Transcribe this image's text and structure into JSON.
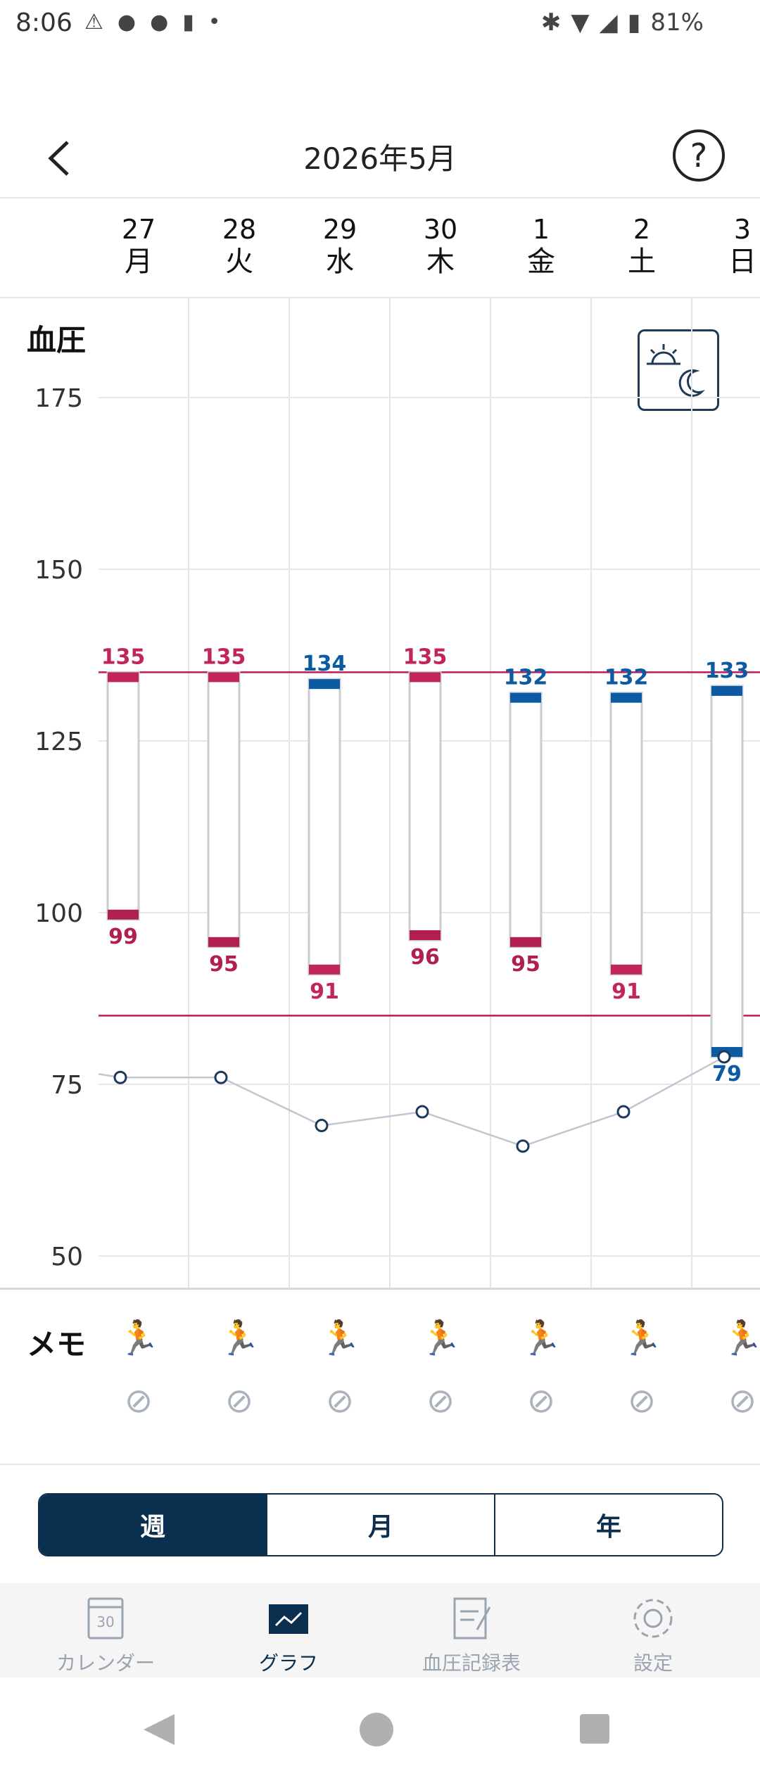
{
  "status": {
    "time": "8:06",
    "battery": "81%"
  },
  "header": {
    "title": "2026年5月"
  },
  "days": [
    {
      "num": "27",
      "wd": "月"
    },
    {
      "num": "28",
      "wd": "火"
    },
    {
      "num": "29",
      "wd": "水"
    },
    {
      "num": "30",
      "wd": "木"
    },
    {
      "num": "1",
      "wd": "金"
    },
    {
      "num": "2",
      "wd": "土"
    },
    {
      "num": "3",
      "wd": "日"
    }
  ],
  "chart_label": "血圧",
  "chart_data": {
    "type": "bar",
    "title": "血圧",
    "y_ticks": [
      175,
      150,
      125,
      100,
      75,
      50
    ],
    "ylim": [
      47,
      178
    ],
    "thresholds": [
      135,
      85
    ],
    "categories": [
      "27",
      "28",
      "29",
      "30",
      "1",
      "2",
      "3"
    ],
    "series": [
      {
        "values": [
          135,
          135,
          134,
          135,
          132,
          132,
          133
        ]
      },
      {
        "values": [
          99,
          95,
          91,
          96,
          95,
          91,
          79
        ]
      },
      {
        "values": [
          76,
          76,
          69,
          71,
          66,
          71,
          79
        ]
      }
    ],
    "colors": {
      "high": "#c2255c",
      "blue": "#0b5aa2",
      "pulse": "#1b3a5c",
      "low": "#b01f4e",
      "line": "#c2185b"
    }
  },
  "memo": {
    "label": "メモ"
  },
  "segments": [
    "週",
    "月",
    "年"
  ],
  "nav": [
    {
      "label": "カレンダー",
      "icon": "calendar-icon"
    },
    {
      "label": "グラフ",
      "icon": "graph-icon"
    },
    {
      "label": "血圧記録表",
      "icon": "record-icon"
    },
    {
      "label": "設定",
      "icon": "settings-icon"
    }
  ]
}
